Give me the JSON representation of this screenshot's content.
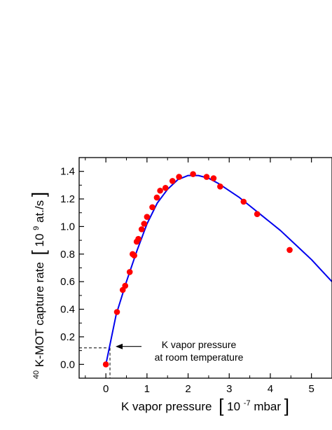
{
  "chart_data": {
    "type": "scatter",
    "title": "",
    "xlabel": {
      "main": "K vapor pressure",
      "unit_prefix": "10",
      "unit_exp": "-7",
      "unit_suffix": "mbar"
    },
    "ylabel": {
      "iso_sup": "40",
      "main": "K-MOT capture rate",
      "unit_prefix": "10",
      "unit_exp": "9",
      "unit_suffix": " at./s"
    },
    "xlim": [
      -0.65,
      5.5
    ],
    "ylim": [
      -0.1,
      1.5
    ],
    "x_ticks": [
      0,
      1,
      2,
      3,
      4,
      5
    ],
    "y_ticks": [
      0.0,
      0.2,
      0.4,
      0.6,
      0.8,
      1.0,
      1.2,
      1.4
    ],
    "y_tick_labels": [
      "0.0",
      "0.2",
      "0.4",
      "0.6",
      "0.8",
      "1.0",
      "1.2",
      "1.4"
    ],
    "grid": false,
    "series": [
      {
        "kind": "points",
        "color": "#ff0000",
        "x": [
          0.0,
          0.27,
          0.41,
          0.47,
          0.58,
          0.65,
          0.69,
          0.75,
          0.79,
          0.87,
          0.93,
          1.0,
          1.13,
          1.24,
          1.32,
          1.45,
          1.62,
          1.78,
          2.12,
          2.45,
          2.62,
          2.78,
          3.35,
          3.68,
          4.47
        ],
        "y": [
          0.0,
          0.38,
          0.54,
          0.57,
          0.67,
          0.8,
          0.79,
          0.89,
          0.91,
          0.98,
          1.02,
          1.07,
          1.14,
          1.21,
          1.26,
          1.28,
          1.33,
          1.36,
          1.38,
          1.36,
          1.35,
          1.29,
          1.18,
          1.09,
          0.83
        ]
      },
      {
        "kind": "fit-curve",
        "color": "#0000ee",
        "x": [
          0.0,
          0.25,
          0.5,
          0.75,
          1.0,
          1.25,
          1.5,
          1.75,
          2.0,
          2.25,
          2.5,
          2.75,
          3.0,
          3.25,
          3.5,
          3.75,
          4.0,
          4.25,
          4.5,
          4.75,
          5.0,
          5.25,
          5.5
        ],
        "y": [
          0.0,
          0.36,
          0.6,
          0.82,
          1.02,
          1.17,
          1.27,
          1.34,
          1.37,
          1.37,
          1.35,
          1.31,
          1.26,
          1.21,
          1.15,
          1.09,
          1.03,
          0.97,
          0.9,
          0.83,
          0.76,
          0.68,
          0.6
        ]
      }
    ],
    "annotation": {
      "lines": [
        "K vapor pressure",
        "at room temperature"
      ],
      "point": {
        "x": 0.1,
        "y": 0.12
      },
      "line_color": "#000000"
    }
  }
}
